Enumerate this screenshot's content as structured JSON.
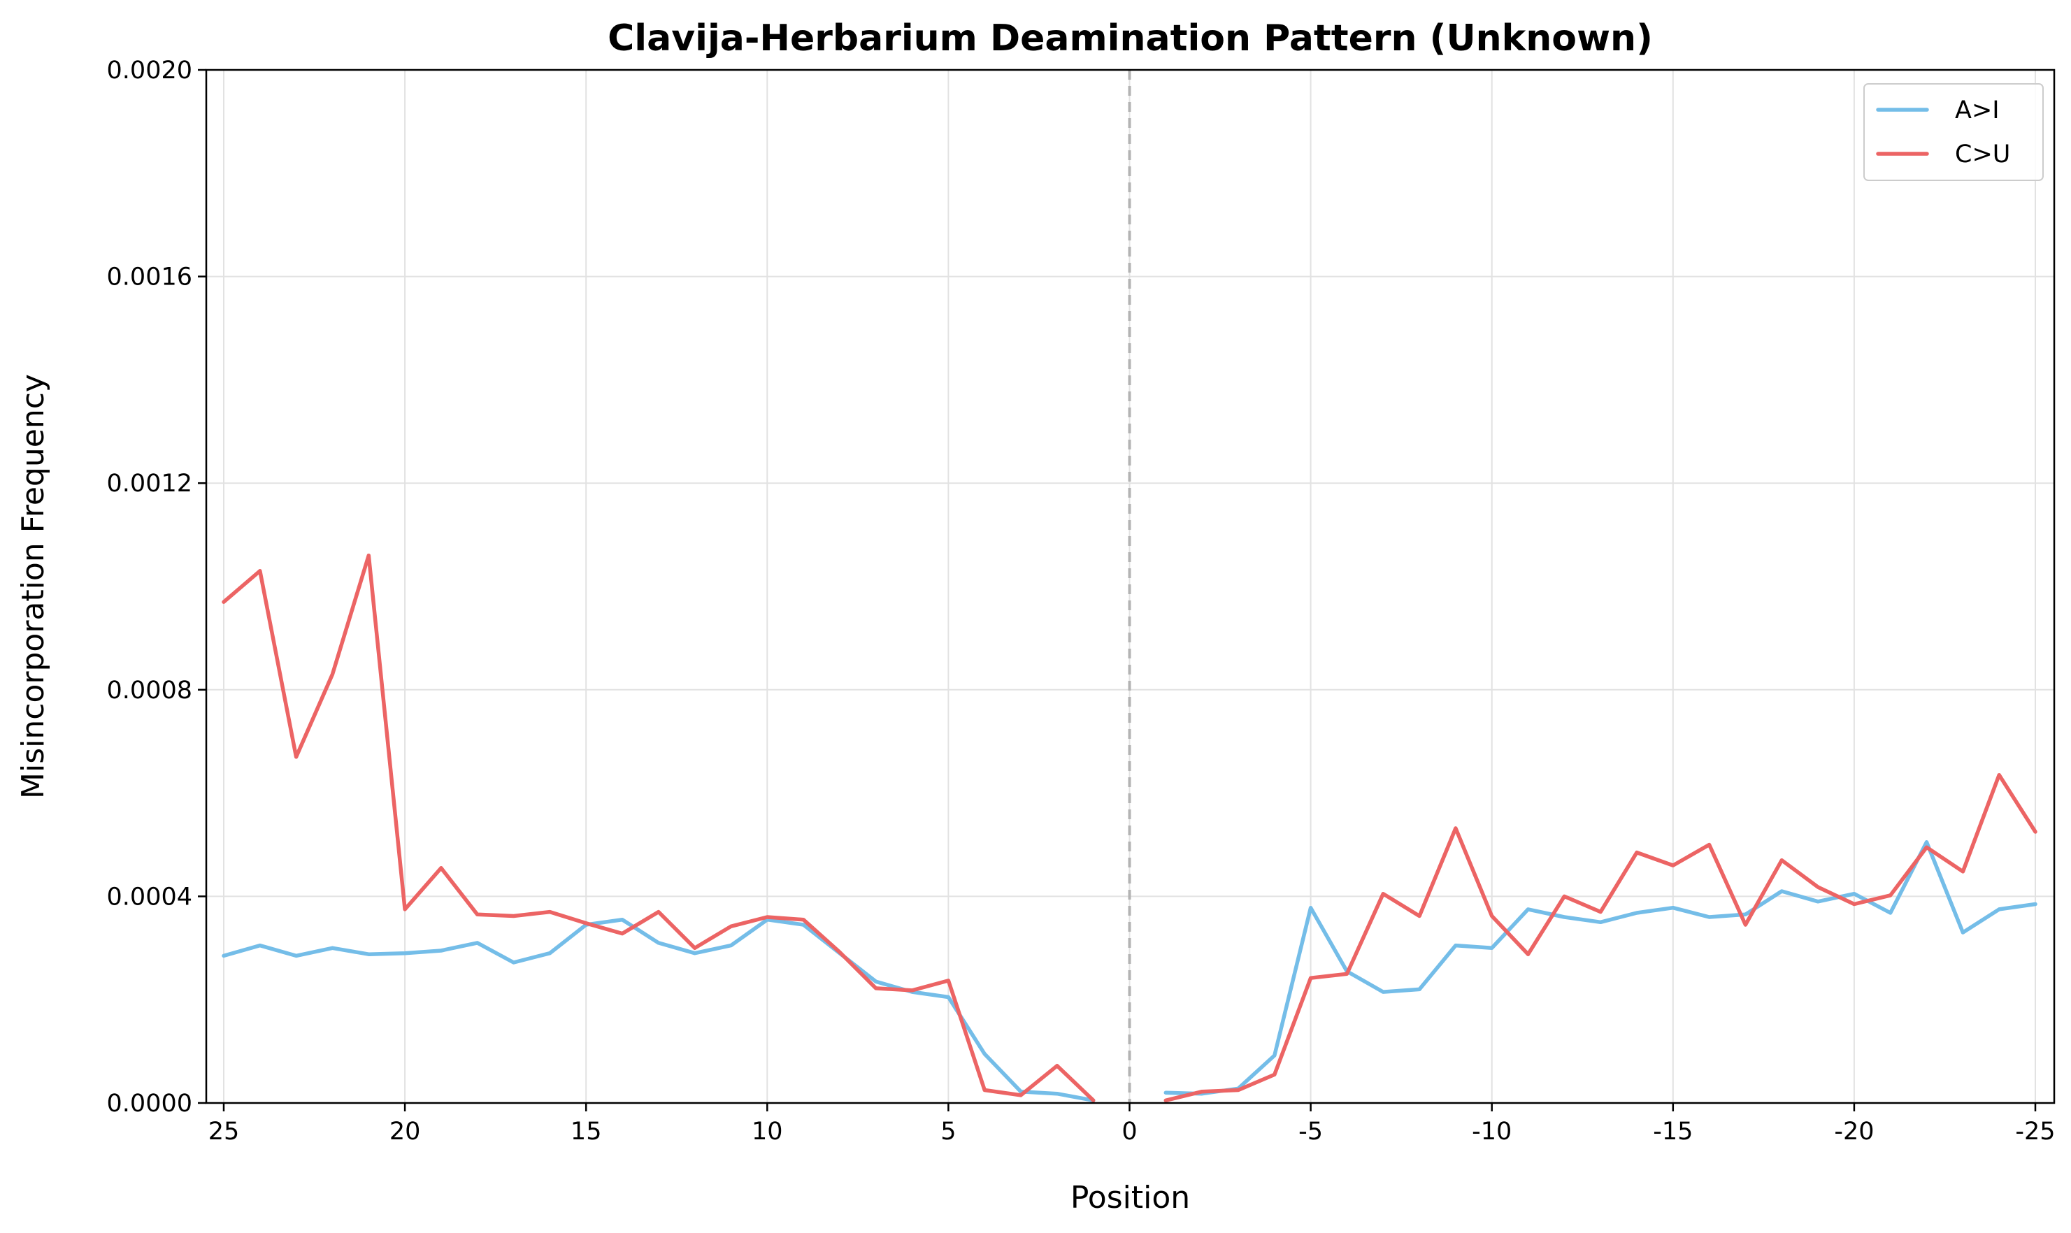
{
  "chart_data": {
    "type": "line",
    "title": "Clavija-Herbarium Deamination Pattern (Unknown)",
    "xlabel": "Position",
    "ylabel": "Misincorporation Frequency",
    "ylim": [
      0,
      0.002
    ],
    "yticks": [
      "0.0000",
      "0.0004",
      "0.0008",
      "0.0012",
      "0.0016",
      "0.0020"
    ],
    "xticks": [
      "25",
      "20",
      "15",
      "10",
      "5",
      "0",
      "-5",
      "-10",
      "-15",
      "-20",
      "-25"
    ],
    "grid": true,
    "legend_position": "top-right",
    "reference_line": {
      "x": "0",
      "style": "dashed"
    },
    "panels": [
      {
        "end": "5prime",
        "x": [
          25,
          24,
          23,
          22,
          21,
          20,
          19,
          18,
          17,
          16,
          15,
          14,
          13,
          12,
          11,
          10,
          9,
          8,
          7,
          6,
          5,
          4,
          3,
          2,
          1
        ],
        "series": [
          {
            "name": "A>I",
            "color": "#74bde8",
            "values": [
              0.000285,
              0.000305,
              0.000285,
              0.0003,
              0.000288,
              0.00029,
              0.000295,
              0.00031,
              0.000272,
              0.00029,
              0.000345,
              0.000355,
              0.00031,
              0.00029,
              0.000305,
              0.000355,
              0.000345,
              0.00029,
              0.000235,
              0.000215,
              0.000205,
              9.5e-05,
              2.2e-05,
              1.8e-05,
              5e-06
            ]
          },
          {
            "name": "C>U",
            "color": "#ec6464",
            "values": [
              0.00097,
              0.00103,
              0.00067,
              0.00083,
              0.00106,
              0.000375,
              0.000455,
              0.000365,
              0.000362,
              0.00037,
              0.000348,
              0.000328,
              0.00037,
              0.0003,
              0.000342,
              0.00036,
              0.000355,
              0.000292,
              0.000222,
              0.000218,
              0.000237,
              2.5e-05,
              1.5e-05,
              7.2e-05,
              5e-06
            ]
          }
        ]
      },
      {
        "end": "3prime",
        "x": [
          -1,
          -2,
          -3,
          -4,
          -5,
          -6,
          -7,
          -8,
          -9,
          -10,
          -11,
          -12,
          -13,
          -14,
          -15,
          -16,
          -17,
          -18,
          -19,
          -20,
          -21,
          -22,
          -23,
          -24,
          -25
        ],
        "series": [
          {
            "name": "A>I",
            "color": "#74bde8",
            "values": [
              2e-05,
              1.8e-05,
              2.8e-05,
              9.2e-05,
              0.000378,
              0.000255,
              0.000215,
              0.00022,
              0.000305,
              0.0003,
              0.000375,
              0.00036,
              0.00035,
              0.000368,
              0.000378,
              0.00036,
              0.000365,
              0.00041,
              0.00039,
              0.000405,
              0.000368,
              0.000505,
              0.00033,
              0.000375,
              0.000385
            ]
          },
          {
            "name": "C>U",
            "color": "#ec6464",
            "values": [
              5e-06,
              2.2e-05,
              2.5e-05,
              5.5e-05,
              0.000242,
              0.00025,
              0.000405,
              0.000362,
              0.000532,
              0.000362,
              0.000288,
              0.0004,
              0.00037,
              0.000485,
              0.00046,
              0.0005,
              0.000345,
              0.00047,
              0.000418,
              0.000385,
              0.000402,
              0.000495,
              0.000448,
              0.000635,
              0.000525
            ]
          }
        ]
      }
    ]
  }
}
